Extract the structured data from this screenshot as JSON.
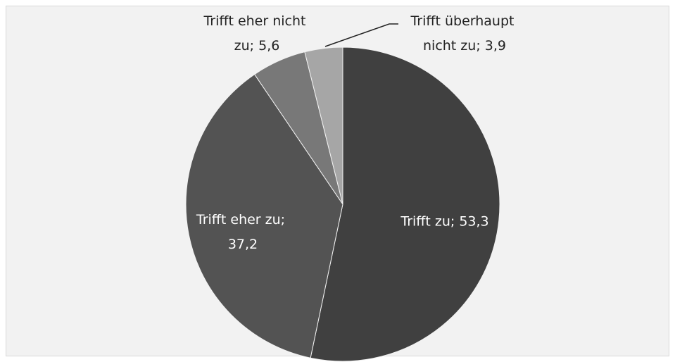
{
  "chart_data": {
    "type": "pie",
    "values": [
      53.3,
      37.2,
      5.6,
      3.9
    ],
    "value_labels": [
      "Trifft zu; 53,3",
      "Trifft eher zu; 37,2",
      "Trifft eher nicht zu; 5,6",
      "Trifft überhaupt nicht zu; 3,9"
    ],
    "colors": [
      "#404040",
      "#535353",
      "#787878",
      "#a6a6a6"
    ]
  }
}
